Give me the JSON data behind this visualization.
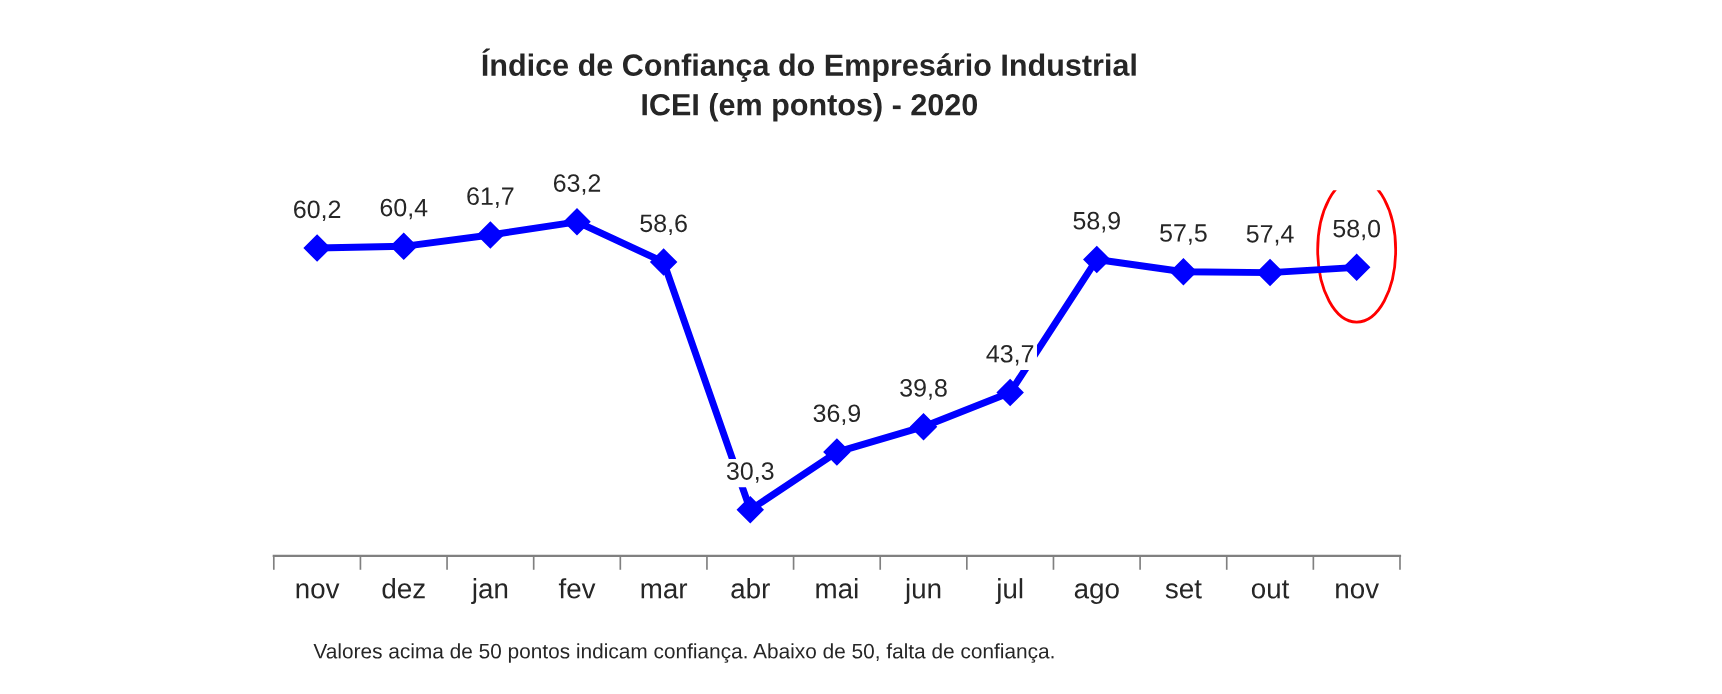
{
  "chart_data": {
    "type": "line",
    "title": "Índice de Confiança do Empresário Industrial\nICEI (em pontos) - 2020",
    "categories": [
      "nov",
      "dez",
      "jan",
      "fev",
      "mar",
      "abr",
      "mai",
      "jun",
      "jul",
      "ago",
      "set",
      "out",
      "nov"
    ],
    "series": [
      {
        "color": "#0000ff",
        "values": [
          60.2,
          60.4,
          61.7,
          63.2,
          58.6,
          30.3,
          36.9,
          39.8,
          43.7,
          58.9,
          57.5,
          57.4,
          58.0
        ],
        "value_labels": [
          "60,2",
          "60,4",
          "61,7",
          "63,2",
          "58,6",
          "30,3",
          "36,9",
          "39,8",
          "43,7",
          "58,9",
          "57,5",
          "57,4",
          "58,0"
        ]
      }
    ],
    "marker": "diamond",
    "line_style": "solid",
    "grid": false,
    "legend": false,
    "tick_labels": "x",
    "annotations": [
      "Valores acima de 50 pontos indicam confiança. Abaixo de 50, falta de confiança."
    ]
  }
}
